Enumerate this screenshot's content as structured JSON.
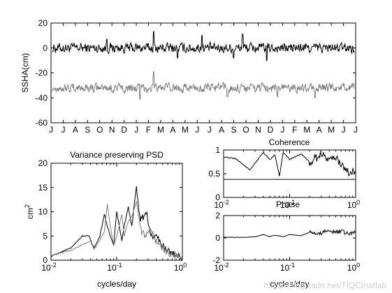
{
  "watermark": "https://blog.csdn.net/TIQCmatlab",
  "chart_data": [
    {
      "type": "line",
      "ylabel": "SSHA(cm)",
      "ylim": [
        -60,
        20
      ],
      "yticks": [
        -60,
        -40,
        -20,
        0,
        20
      ],
      "xtick_labels": [
        "J",
        "J",
        "A",
        "S",
        "O",
        "N",
        "D",
        "J",
        "F",
        "M",
        "A",
        "M",
        "J",
        "J",
        "A",
        "S",
        "O",
        "N",
        "D",
        "J",
        "F",
        "M",
        "A",
        "M",
        "J",
        "J"
      ],
      "grid": false,
      "series": [
        {
          "color": "#000000",
          "baseline": 0,
          "amplitude": 4.5,
          "spikes": [
            [
              0.18,
              7
            ],
            [
              0.335,
              13
            ],
            [
              0.415,
              -8
            ],
            [
              0.495,
              10
            ],
            [
              0.6,
              -8
            ],
            [
              0.63,
              11
            ],
            [
              0.71,
              -10
            ]
          ]
        },
        {
          "color": "#7f7f7f",
          "baseline": -32,
          "amplitude": 4,
          "spikes": [
            [
              0.29,
              -9
            ],
            [
              0.335,
              13
            ],
            [
              0.58,
              -7
            ],
            [
              0.745,
              -7
            ],
            [
              0.87,
              -8
            ]
          ]
        }
      ]
    },
    {
      "type": "line",
      "title": "Variance preserving PSD",
      "xlabel": "cycles/day",
      "ylabel": "cm2",
      "xscale": "log",
      "xlim": [
        0.01,
        1
      ],
      "ylim": [
        0,
        20
      ],
      "yticks": [
        0,
        5,
        10,
        15,
        20
      ],
      "xticks": [
        "10-2",
        "10-1",
        "100"
      ],
      "series": [
        {
          "color": "#000000",
          "points": [
            [
              0.01,
              0.8
            ],
            [
              0.02,
              2.5
            ],
            [
              0.03,
              5
            ],
            [
              0.038,
              5
            ],
            [
              0.045,
              2.5
            ],
            [
              0.055,
              4.8
            ],
            [
              0.065,
              9.5
            ],
            [
              0.072,
              7
            ],
            [
              0.08,
              5
            ],
            [
              0.09,
              3
            ],
            [
              0.1,
              10
            ],
            [
              0.12,
              4
            ],
            [
              0.13,
              7
            ],
            [
              0.15,
              11
            ],
            [
              0.17,
              7
            ],
            [
              0.2,
              15.5
            ],
            [
              0.23,
              8
            ],
            [
              0.28,
              10
            ],
            [
              0.33,
              5
            ],
            [
              0.4,
              5
            ],
            [
              0.5,
              3
            ],
            [
              0.6,
              2
            ],
            [
              0.8,
              1
            ],
            [
              1,
              0.3
            ]
          ]
        },
        {
          "color": "#7f7f7f",
          "points": [
            [
              0.01,
              1
            ],
            [
              0.02,
              2
            ],
            [
              0.03,
              3.2
            ],
            [
              0.04,
              4
            ],
            [
              0.045,
              2.2
            ],
            [
              0.055,
              4
            ],
            [
              0.065,
              6
            ],
            [
              0.072,
              11.5
            ],
            [
              0.08,
              7
            ],
            [
              0.09,
              3
            ],
            [
              0.1,
              5
            ],
            [
              0.12,
              9.5
            ],
            [
              0.13,
              5
            ],
            [
              0.15,
              8
            ],
            [
              0.17,
              9
            ],
            [
              0.2,
              12
            ],
            [
              0.24,
              6
            ],
            [
              0.28,
              5
            ],
            [
              0.33,
              6
            ],
            [
              0.4,
              4
            ],
            [
              0.5,
              2.5
            ],
            [
              0.6,
              1.5
            ],
            [
              0.8,
              0.8
            ],
            [
              1,
              0.3
            ]
          ]
        }
      ]
    },
    {
      "type": "line",
      "title": "Coherence",
      "xscale": "log",
      "xlim": [
        0.01,
        1
      ],
      "ylim": [
        0,
        1
      ],
      "yticks": [
        0,
        0.5,
        1
      ],
      "xticks": [
        "10-2",
        "10-1",
        "100"
      ],
      "threshold": 0.38,
      "series": [
        {
          "color": "#000000",
          "points": [
            [
              0.01,
              0.85
            ],
            [
              0.015,
              0.82
            ],
            [
              0.025,
              0.58
            ],
            [
              0.04,
              0.95
            ],
            [
              0.05,
              0.8
            ],
            [
              0.06,
              0.9
            ],
            [
              0.07,
              0.45
            ],
            [
              0.08,
              0.95
            ],
            [
              0.1,
              0.8
            ],
            [
              0.15,
              0.92
            ],
            [
              0.2,
              0.75
            ],
            [
              0.3,
              0.9
            ],
            [
              0.4,
              0.8
            ],
            [
              0.5,
              0.85
            ],
            [
              0.6,
              0.7
            ],
            [
              0.7,
              0.6
            ],
            [
              0.8,
              0.5
            ],
            [
              1,
              0.55
            ]
          ]
        }
      ]
    },
    {
      "type": "line",
      "title": "Phase",
      "xlabel": "cycles/day",
      "xscale": "log",
      "xlim": [
        0.01,
        1
      ],
      "ylim": [
        -2,
        2
      ],
      "yticks": [
        -2,
        0,
        2
      ],
      "xticks": [
        "10-2",
        "10-1",
        "100"
      ],
      "series": [
        {
          "color": "#000000",
          "points": [
            [
              0.01,
              0.05
            ],
            [
              0.02,
              0.05
            ],
            [
              0.03,
              0.1
            ],
            [
              0.04,
              0.3
            ],
            [
              0.05,
              0.1
            ],
            [
              0.06,
              0.25
            ],
            [
              0.08,
              0.1
            ],
            [
              0.1,
              0.3
            ],
            [
              0.15,
              0.2
            ],
            [
              0.2,
              0.5
            ],
            [
              0.3,
              0.4
            ],
            [
              0.4,
              0.7
            ],
            [
              0.5,
              0.5
            ],
            [
              0.6,
              0.6
            ],
            [
              0.8,
              0.3
            ],
            [
              1,
              0.6
            ]
          ]
        }
      ]
    }
  ]
}
